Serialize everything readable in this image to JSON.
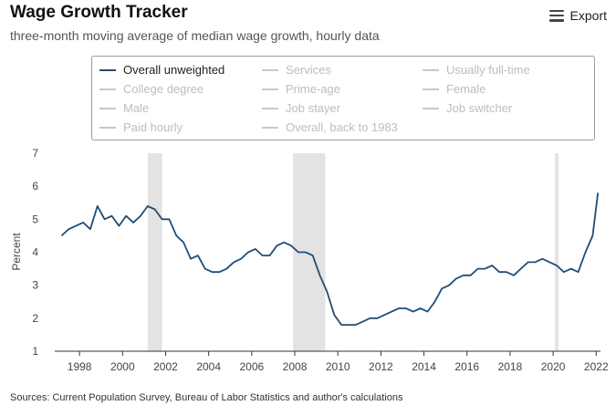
{
  "header": {
    "title": "Wage Growth Tracker",
    "subtitle": "three-month moving average of median wage growth, hourly data",
    "export_label": "Export"
  },
  "legend": {
    "items": [
      {
        "label": "Overall unweighted",
        "active": true
      },
      {
        "label": "Services",
        "active": false
      },
      {
        "label": "Usually full-time",
        "active": false
      },
      {
        "label": "College degree",
        "active": false
      },
      {
        "label": "Prime-age",
        "active": false
      },
      {
        "label": "Female",
        "active": false
      },
      {
        "label": "Male",
        "active": false
      },
      {
        "label": "Job stayer",
        "active": false
      },
      {
        "label": "Job switcher",
        "active": false
      },
      {
        "label": "Paid hourly",
        "active": false
      },
      {
        "label": "Overall, back to 1983",
        "active": false
      }
    ]
  },
  "colors": {
    "series": "#1f4e79",
    "recession": "#e3e3e3",
    "inactive": "#c8c8c8"
  },
  "footer": {
    "source": "Sources: Current Population Survey, Bureau of Labor Statistics and author's calculations"
  },
  "chart_data": {
    "type": "line",
    "title": "Wage Growth Tracker",
    "subtitle": "three-month moving average of median wage growth, hourly data",
    "ylabel": "Percent",
    "xlabel": "",
    "xlim": [
      "1997-01",
      "2022-01"
    ],
    "ylim": [
      1,
      7
    ],
    "yticks": [
      "1",
      "2",
      "3",
      "4",
      "5",
      "6",
      "7"
    ],
    "xticks": [
      "1998",
      "2000",
      "2002",
      "2004",
      "2006",
      "2008",
      "2010",
      "2012",
      "2014",
      "2016",
      "2018",
      "2020",
      "2022"
    ],
    "grid": false,
    "legend_position": "top",
    "recession_bands": [
      [
        "2001-03",
        "2001-11"
      ],
      [
        "2007-12",
        "2009-06"
      ],
      [
        "2020-02",
        "2020-04"
      ]
    ],
    "series": [
      {
        "name": "Overall unweighted",
        "x": [
          "1997-03",
          "1997-07",
          "1997-11",
          "1998-03",
          "1998-07",
          "1998-11",
          "1999-03",
          "1999-07",
          "1999-11",
          "2000-03",
          "2000-07",
          "2000-11",
          "2001-03",
          "2001-07",
          "2001-11",
          "2002-03",
          "2002-07",
          "2002-11",
          "2003-03",
          "2003-07",
          "2003-11",
          "2004-03",
          "2004-07",
          "2004-11",
          "2005-03",
          "2005-07",
          "2005-11",
          "2006-03",
          "2006-07",
          "2006-11",
          "2007-03",
          "2007-07",
          "2007-11",
          "2008-03",
          "2008-07",
          "2008-11",
          "2009-03",
          "2009-07",
          "2009-11",
          "2010-03",
          "2010-07",
          "2010-11",
          "2011-03",
          "2011-07",
          "2011-11",
          "2012-03",
          "2012-07",
          "2012-11",
          "2013-03",
          "2013-07",
          "2013-11",
          "2014-03",
          "2014-07",
          "2014-11",
          "2015-03",
          "2015-07",
          "2015-11",
          "2016-03",
          "2016-07",
          "2016-11",
          "2017-03",
          "2017-07",
          "2017-11",
          "2018-03",
          "2018-07",
          "2018-11",
          "2019-03",
          "2019-07",
          "2019-11",
          "2020-03",
          "2020-07",
          "2020-11",
          "2021-03",
          "2021-07",
          "2021-11",
          "2022-02"
        ],
        "values": [
          4.5,
          4.7,
          4.8,
          4.9,
          4.7,
          5.4,
          5.0,
          5.1,
          4.8,
          5.1,
          4.9,
          5.1,
          5.4,
          5.3,
          5.0,
          5.0,
          4.5,
          4.3,
          3.8,
          3.9,
          3.5,
          3.4,
          3.4,
          3.5,
          3.7,
          3.8,
          4.0,
          4.1,
          3.9,
          3.9,
          4.2,
          4.3,
          4.2,
          4.0,
          4.0,
          3.9,
          3.3,
          2.8,
          2.1,
          1.8,
          1.8,
          1.8,
          1.9,
          2.0,
          2.0,
          2.1,
          2.2,
          2.3,
          2.3,
          2.2,
          2.3,
          2.2,
          2.5,
          2.9,
          3.0,
          3.2,
          3.3,
          3.3,
          3.5,
          3.5,
          3.6,
          3.4,
          3.4,
          3.3,
          3.5,
          3.7,
          3.7,
          3.8,
          3.7,
          3.6,
          3.4,
          3.5,
          3.4,
          4.0,
          4.5,
          5.8
        ]
      }
    ]
  }
}
